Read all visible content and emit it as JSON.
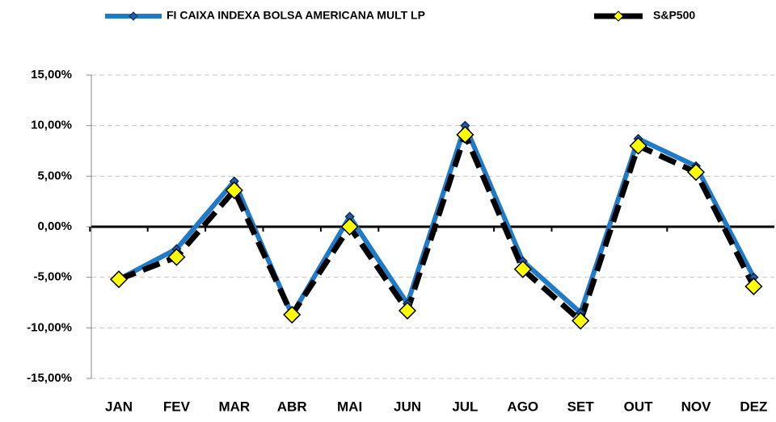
{
  "chart_data": {
    "type": "line",
    "categories": [
      "JAN",
      "FEV",
      "MAR",
      "ABR",
      "MAI",
      "JUN",
      "JUL",
      "AGO",
      "SET",
      "OUT",
      "NOV",
      "DEZ"
    ],
    "series": [
      {
        "name": "FI CAIXA INDEXA BOLSA AMERICANA MULT LP",
        "color": "#1f7bc8",
        "values": [
          -5.2,
          -2.2,
          4.5,
          -8.7,
          1.0,
          -7.6,
          10.0,
          -3.4,
          -8.5,
          8.7,
          6.0,
          -5.0
        ]
      },
      {
        "name": "S&P500",
        "color": "#000000",
        "values": [
          -5.2,
          -3.0,
          3.6,
          -8.7,
          0.0,
          -8.3,
          9.1,
          -4.2,
          -9.3,
          8.0,
          5.4,
          -5.9
        ]
      }
    ],
    "ylim": [
      -15,
      15
    ],
    "yticks": [
      {
        "value": -15,
        "label": "-15,00%"
      },
      {
        "value": -10,
        "label": "-10,00%"
      },
      {
        "value": -5,
        "label": "-5,00%"
      },
      {
        "value": 0,
        "label": "0,00%"
      },
      {
        "value": 5,
        "label": "5,00%"
      },
      {
        "value": 10,
        "label": "10,00%"
      },
      {
        "value": 15,
        "label": "15,00%"
      }
    ],
    "grid": true
  }
}
